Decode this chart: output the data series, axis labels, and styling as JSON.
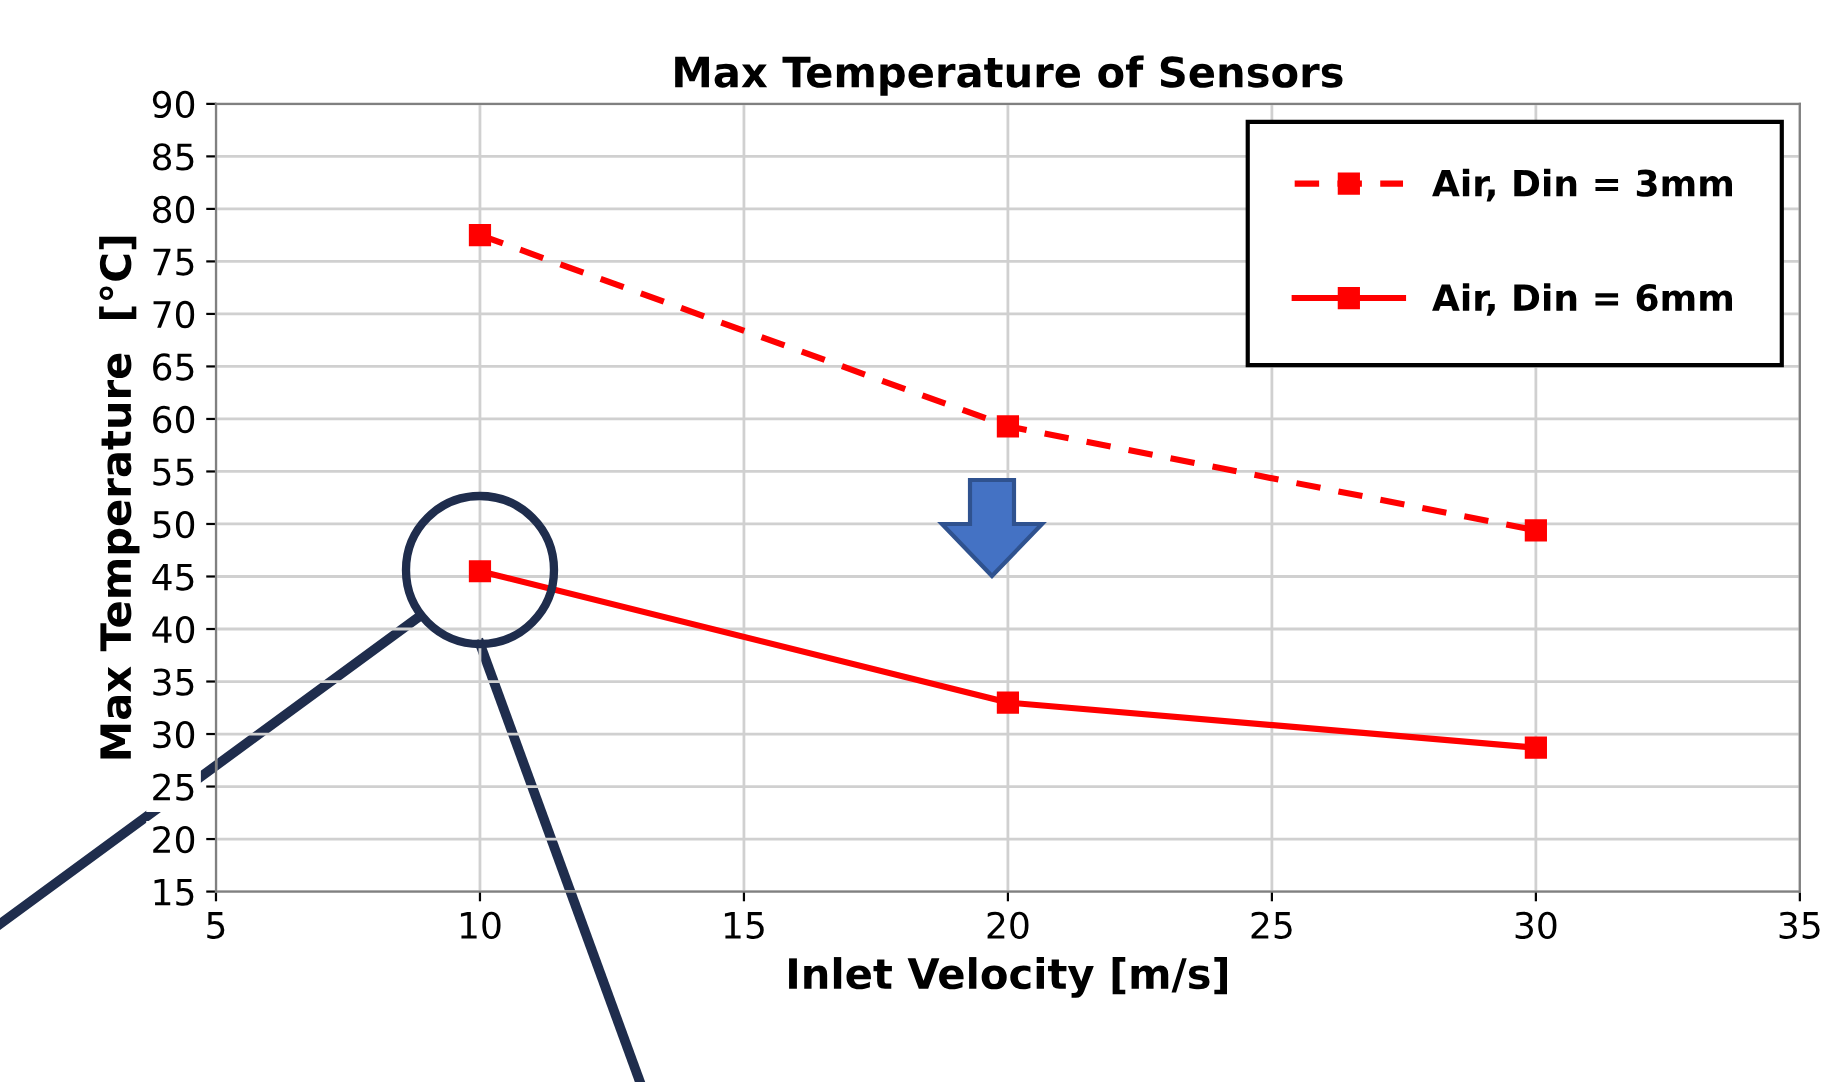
{
  "chart_data": {
    "type": "line",
    "title": "Max Temperature of Sensors",
    "xlabel": "Inlet Velocity [m/s]",
    "ylabel": "Max Temperature  [°C]",
    "x": [
      10,
      20,
      30
    ],
    "series": [
      {
        "name": "Air, Din = 3mm",
        "color": "#ff0000",
        "values": [
          77.5,
          59.3,
          49.4
        ],
        "line_style": "dashed"
      },
      {
        "name": "Air, Din = 6mm",
        "color": "#ff0000",
        "values": [
          45.5,
          33.0,
          28.7
        ],
        "line_style": "solid"
      }
    ],
    "marker": "square",
    "xlim": [
      5,
      35
    ],
    "xticks": [
      5,
      10,
      15,
      20,
      25,
      30,
      35
    ],
    "ylim": [
      15,
      90
    ],
    "yticks": [
      15,
      20,
      25,
      30,
      35,
      40,
      45,
      50,
      55,
      60,
      65,
      70,
      75,
      80,
      85,
      90
    ],
    "grid": true,
    "legend": "top right"
  }
}
